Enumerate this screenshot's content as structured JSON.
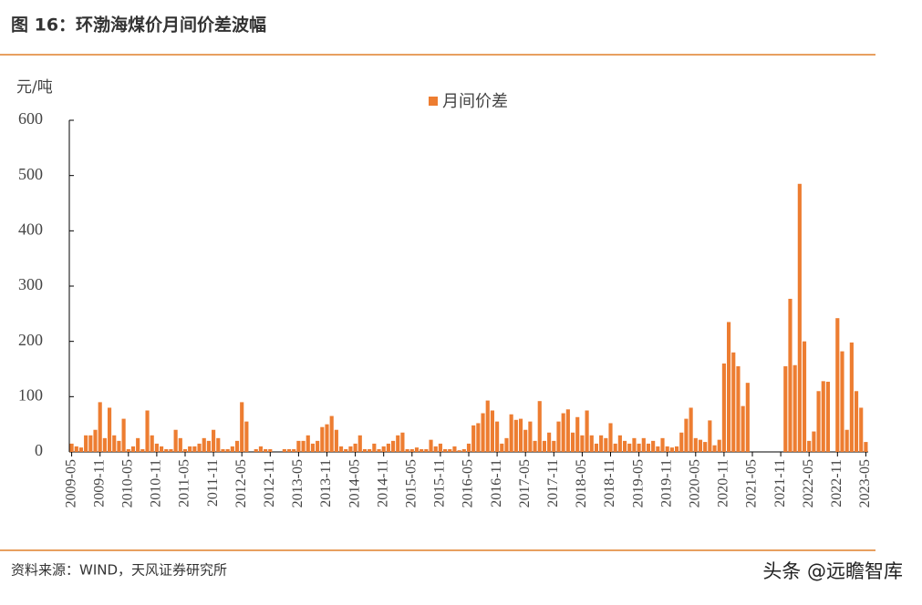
{
  "header": {
    "title": "图 16：环渤海煤价月间价差波幅"
  },
  "chart_data": {
    "type": "bar",
    "y_unit": "元/吨",
    "categories": [
      "2009-05",
      null,
      null,
      null,
      null,
      null,
      "2009-11",
      null,
      null,
      null,
      null,
      null,
      "2010-05",
      null,
      null,
      null,
      null,
      null,
      "2010-11",
      null,
      null,
      null,
      null,
      null,
      "2011-05",
      null,
      null,
      null,
      null,
      null,
      "2011-11",
      null,
      null,
      null,
      null,
      null,
      "2012-05",
      null,
      null,
      null,
      null,
      null,
      "2012-11",
      null,
      null,
      null,
      null,
      null,
      "2013-05",
      null,
      null,
      null,
      null,
      null,
      "2013-11",
      null,
      null,
      null,
      null,
      null,
      "2014-05",
      null,
      null,
      null,
      null,
      null,
      "2014-11",
      null,
      null,
      null,
      null,
      null,
      "2015-05",
      null,
      null,
      null,
      null,
      null,
      "2015-11",
      null,
      null,
      null,
      null,
      null,
      "2016-05",
      null,
      null,
      null,
      null,
      null,
      "2016-11",
      null,
      null,
      null,
      null,
      null,
      "2017-05",
      null,
      null,
      null,
      null,
      null,
      "2017-11",
      null,
      null,
      null,
      null,
      null,
      "2018-05",
      null,
      null,
      null,
      null,
      null,
      "2018-11",
      null,
      null,
      null,
      null,
      null,
      "2019-05",
      null,
      null,
      null,
      null,
      null,
      "2019-11",
      null,
      null,
      null,
      null,
      null,
      "2020-05",
      null,
      null,
      null,
      null,
      null,
      "2020-11",
      null,
      null,
      null,
      null,
      null,
      "2021-05",
      null,
      null,
      null,
      null,
      null,
      "2021-11",
      null,
      null,
      null,
      null,
      null,
      "2022-05",
      null,
      null,
      null,
      null,
      null,
      "2022-11",
      null,
      null,
      null,
      null,
      null,
      "2023-05"
    ],
    "series": [
      {
        "name": "月间价差",
        "color": "#ED7D31",
        "values": [
          15,
          10,
          8,
          30,
          30,
          40,
          90,
          25,
          80,
          30,
          20,
          60,
          5,
          10,
          25,
          5,
          75,
          30,
          15,
          10,
          5,
          5,
          40,
          25,
          5,
          10,
          10,
          15,
          25,
          20,
          40,
          25,
          5,
          5,
          10,
          20,
          90,
          55,
          null,
          5,
          10,
          5,
          5,
          null,
          null,
          5,
          5,
          5,
          20,
          20,
          30,
          15,
          20,
          45,
          50,
          65,
          40,
          10,
          5,
          10,
          15,
          30,
          5,
          5,
          15,
          5,
          10,
          15,
          20,
          30,
          35,
          5,
          5,
          8,
          5,
          5,
          22,
          10,
          15,
          5,
          5,
          10,
          3,
          5,
          15,
          48,
          52,
          70,
          93,
          75,
          55,
          15,
          25,
          68,
          58,
          60,
          40,
          55,
          20,
          92,
          20,
          35,
          20,
          55,
          70,
          77,
          35,
          63,
          30,
          75,
          30,
          15,
          30,
          25,
          52,
          15,
          30,
          20,
          15,
          25,
          15,
          25,
          15,
          20,
          10,
          25,
          10,
          8,
          10,
          35,
          60,
          80,
          25,
          22,
          18,
          57,
          12,
          22,
          160,
          235,
          180,
          155,
          83,
          125,
          null,
          null,
          null,
          null,
          null,
          null,
          null,
          155,
          277,
          157,
          485,
          200,
          20,
          37,
          110,
          128,
          127,
          null,
          242,
          182,
          40,
          198,
          110,
          80,
          18
        ]
      }
    ],
    "ylim": [
      0,
      600
    ],
    "yticks": [
      0,
      100,
      200,
      300,
      400,
      500,
      600
    ],
    "legend": "top"
  },
  "footer": {
    "source": "资料来源：WIND，天风证券研究所",
    "watermark": "头条 @远瞻智库"
  }
}
